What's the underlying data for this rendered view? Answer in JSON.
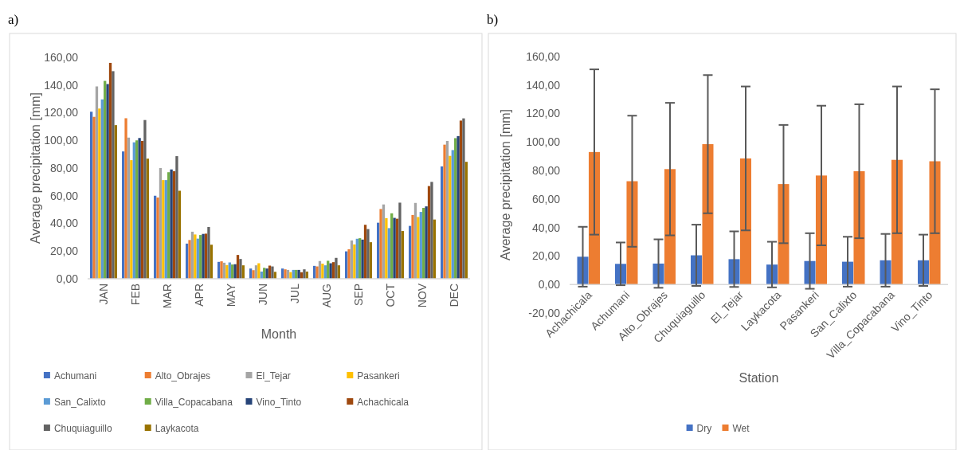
{
  "chart_data": [
    {
      "type": "bar",
      "title": "a)",
      "xlabel": "Month",
      "ylabel": "Average precipitation [mm]",
      "categories": [
        "JAN",
        "FEB",
        "MAR",
        "APR",
        "MAY",
        "JUN",
        "JUL",
        "AUG",
        "SEP",
        "OCT",
        "NOV",
        "DEC"
      ],
      "ylim": [
        0,
        160
      ],
      "yticks": [
        {
          "value": 0,
          "label": "0,00"
        },
        {
          "value": 20,
          "label": "20,00"
        },
        {
          "value": 40,
          "label": "40,00"
        },
        {
          "value": 60,
          "label": "60,00"
        },
        {
          "value": 80,
          "label": "80,00"
        },
        {
          "value": 100,
          "label": "100,00"
        },
        {
          "value": 120,
          "label": "120,00"
        },
        {
          "value": 140,
          "label": "140,00"
        },
        {
          "value": 160,
          "label": "160,00"
        }
      ],
      "legend": "bottom",
      "series": [
        {
          "name": "Achumani",
          "color": "#4472c4",
          "values": [
            120.7,
            92,
            60,
            25.4,
            12.2,
            7.4,
            7.4,
            9.3,
            19.8,
            40.5,
            38.2,
            81.2
          ]
        },
        {
          "name": "Alto_Obrajes",
          "color": "#ed7d31",
          "values": [
            117,
            116,
            58.7,
            28,
            12.6,
            6.2,
            6.8,
            8.9,
            21.3,
            50.4,
            46.1,
            96.9
          ]
        },
        {
          "name": "El_Tejar",
          "color": "#a5a5a5",
          "values": [
            139,
            102,
            80,
            34,
            11.6,
            9.7,
            6.4,
            12.8,
            27.7,
            53.7,
            54.8,
            99.6
          ]
        },
        {
          "name": "Pasankeri",
          "color": "#ffc000",
          "values": [
            123,
            85.7,
            71.3,
            32,
            9.9,
            11.2,
            4.8,
            10.9,
            24.8,
            43.8,
            44.6,
            88.8
          ]
        },
        {
          "name": "San_Calixto",
          "color": "#5b9bd5",
          "values": [
            129.6,
            98.6,
            71.3,
            29,
            11.8,
            5.2,
            6.4,
            9.7,
            28.9,
            36.6,
            48.3,
            93
          ]
        },
        {
          "name": "Villa_Copacabana",
          "color": "#70ad47",
          "values": [
            143,
            100,
            77,
            31.6,
            10.3,
            7.9,
            6.4,
            13,
            29.3,
            47.3,
            51.2,
            101.6
          ]
        },
        {
          "name": "Vino_Tinto",
          "color": "#264478",
          "values": [
            140.7,
            101.7,
            79,
            32.4,
            10.5,
            7.4,
            6.4,
            11.2,
            28.3,
            44,
            52.3,
            103.1
          ]
        },
        {
          "name": "Achachicala",
          "color": "#9e480e",
          "values": [
            156,
            99.6,
            77.7,
            32.6,
            17.2,
            9.5,
            4.7,
            12,
            39,
            43.4,
            67,
            114.3
          ]
        },
        {
          "name": "Chuquiaguillo",
          "color": "#636363",
          "values": [
            150,
            114.7,
            88.6,
            37.4,
            14.3,
            8.9,
            6.8,
            15.1,
            35.9,
            55,
            70,
            115.9
          ]
        },
        {
          "name": "Laykacota",
          "color": "#997300",
          "values": [
            111,
            86.8,
            63.6,
            24.6,
            9.7,
            5,
            5.2,
            9.7,
            26.4,
            34.5,
            42.8,
            84.5
          ]
        }
      ]
    },
    {
      "type": "bar",
      "title": "b)",
      "xlabel": "Station",
      "ylabel": "Average precipitation [mm]",
      "categories": [
        "Achachicala",
        "Achumani",
        "Alto_Obrajes",
        "Chuquiaguillo",
        "El_Tejar",
        "Laykacota",
        "Pasankeri",
        "San_Calixto",
        "Villa_Copacabana",
        "Vino_Tinto"
      ],
      "ylim": [
        -20,
        160
      ],
      "yticks": [
        {
          "value": -20,
          "label": "-20,00"
        },
        {
          "value": 0,
          "label": "0,00"
        },
        {
          "value": 20,
          "label": "20,00"
        },
        {
          "value": 40,
          "label": "40,00"
        },
        {
          "value": 60,
          "label": "60,00"
        },
        {
          "value": 80,
          "label": "80,00"
        },
        {
          "value": 100,
          "label": "100,00"
        },
        {
          "value": 120,
          "label": "120,00"
        },
        {
          "value": 140,
          "label": "140,00"
        },
        {
          "value": 160,
          "label": "160,00"
        }
      ],
      "legend": "bottom",
      "series": [
        {
          "name": "Dry",
          "color": "#4472c4",
          "values": [
            19.5,
            14.5,
            14.7,
            20.5,
            17.8,
            14,
            16.5,
            16,
            17,
            17
          ],
          "errors": [
            21,
            15,
            17,
            21.5,
            19.5,
            16,
            19.5,
            17.5,
            18.5,
            18
          ]
        },
        {
          "name": "Wet",
          "color": "#ed7d31",
          "values": [
            93,
            72.5,
            81,
            98.5,
            88.5,
            70.5,
            76.5,
            79.5,
            87.5,
            86.5
          ],
          "errors": [
            58,
            46,
            46.5,
            48.5,
            50.5,
            41.5,
            49,
            47,
            51.5,
            50.5
          ]
        }
      ]
    }
  ]
}
